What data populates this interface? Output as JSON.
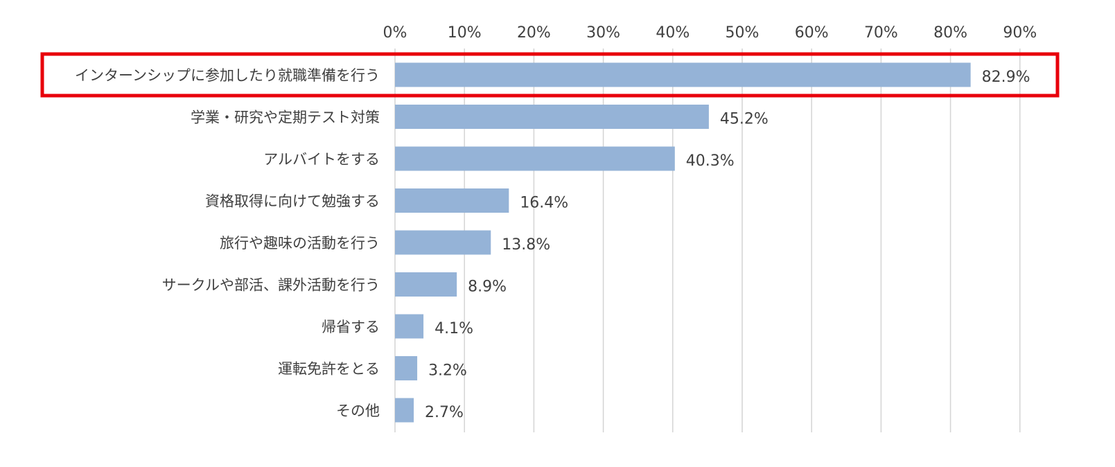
{
  "chart_data": {
    "type": "bar",
    "orientation": "horizontal",
    "title": "",
    "xlabel": "",
    "ylabel": "",
    "xlim": [
      0,
      90
    ],
    "x_ticks": [
      "0%",
      "10%",
      "20%",
      "30%",
      "40%",
      "50%",
      "60%",
      "70%",
      "80%",
      "90%"
    ],
    "x_tick_values": [
      0,
      10,
      20,
      30,
      40,
      50,
      60,
      70,
      80,
      90
    ],
    "grid": "vertical",
    "legend": "none",
    "categories": [
      "インターンシップに参加したり就職準備を行う",
      "学業・研究や定期テスト対策",
      "アルバイトをする",
      "資格取得に向けて勉強する",
      "旅行や趣味の活動を行う",
      "サークルや部活、課外活動を行う",
      "帰省する",
      "運転免許をとる",
      "その他"
    ],
    "values": [
      82.9,
      45.2,
      40.3,
      16.4,
      13.8,
      8.9,
      4.1,
      3.2,
      2.7
    ],
    "value_labels": [
      "82.9%",
      "45.2%",
      "40.3%",
      "16.4%",
      "13.8%",
      "8.9%",
      "4.1%",
      "3.2%",
      "2.7%"
    ],
    "highlighted_category_index": 0,
    "colors": {
      "bar": "#95b3d7",
      "highlight_frame": "#e8000b",
      "gridline": "#d4d4d4",
      "text": "#404040"
    }
  }
}
